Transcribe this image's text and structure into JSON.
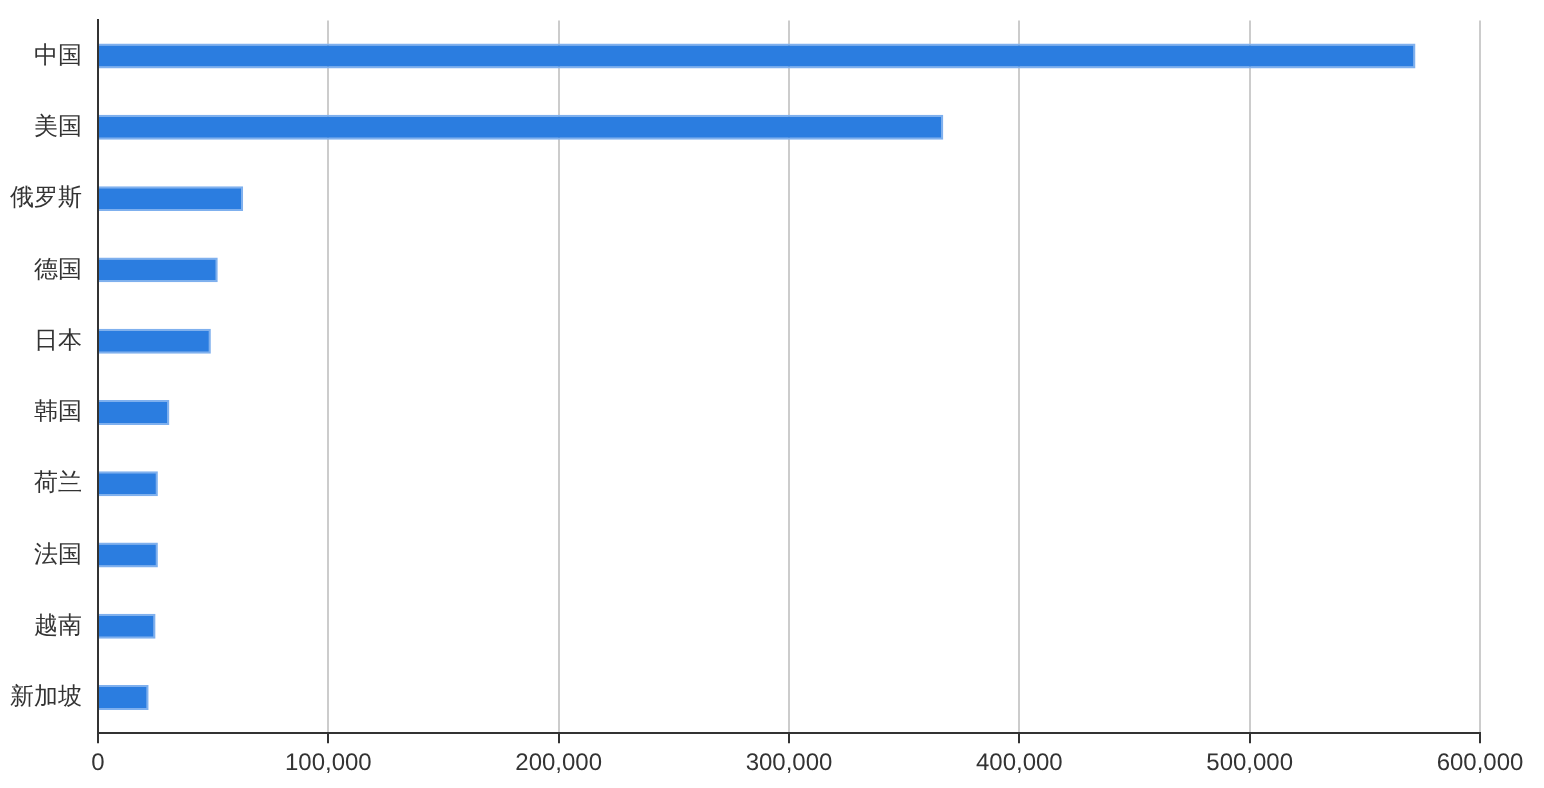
{
  "chart_data": {
    "type": "bar",
    "orientation": "horizontal",
    "categories": [
      "中国",
      "美国",
      "俄罗斯",
      "德国",
      "日本",
      "韩国",
      "荷兰",
      "法国",
      "越南",
      "新加坡"
    ],
    "values": [
      572000,
      367000,
      63000,
      52000,
      49000,
      31000,
      26000,
      26000,
      25000,
      22000
    ],
    "color": "#2b7de0",
    "xlim": [
      0,
      600000
    ],
    "xticks": [
      0,
      {
        "value": 100000,
        "label": "100,000"
      },
      {
        "value": 200000,
        "label": "200,000"
      },
      {
        "value": 300000,
        "label": "300,000"
      },
      {
        "value": 400000,
        "label": "400,000"
      },
      {
        "value": 500000,
        "label": "500,000"
      },
      {
        "value": 600000,
        "label": "600,000"
      }
    ],
    "grid": "x",
    "legend": false
  }
}
